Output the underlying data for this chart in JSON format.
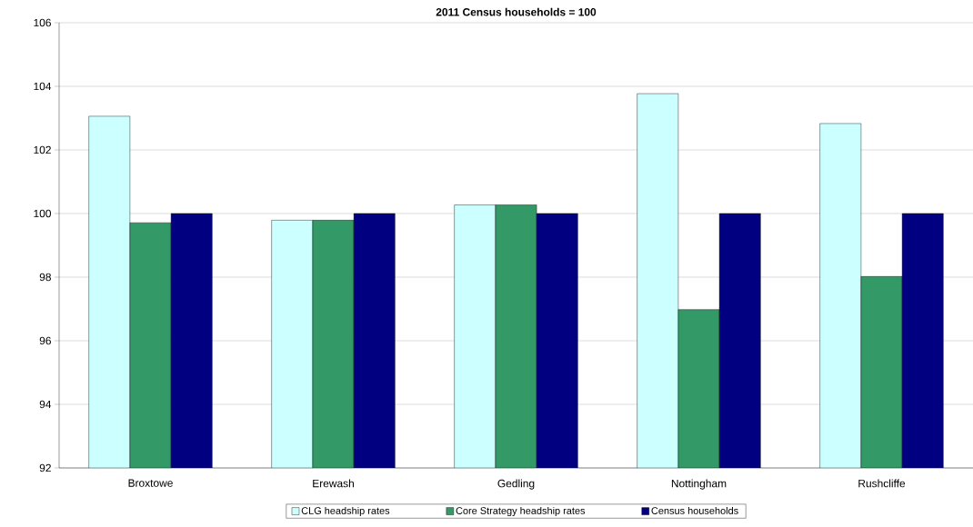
{
  "chart_data": {
    "type": "bar",
    "title": "2011 Census households = 100",
    "categories": [
      "Broxtowe",
      "Erewash",
      "Gedling",
      "Nottingham",
      "Rushcliffe"
    ],
    "series": [
      {
        "name": "CLG headship rates",
        "color": "#ccffff",
        "values": [
          103.06,
          99.79,
          100.27,
          103.77,
          102.83
        ]
      },
      {
        "name": "Core Strategy headship rates",
        "color": "#339966",
        "values": [
          99.71,
          99.79,
          100.27,
          96.98,
          98.02
        ]
      },
      {
        "name": "Census households",
        "color": "#000080",
        "values": [
          100,
          100,
          100,
          100,
          100
        ]
      }
    ],
    "ylim": [
      92,
      106
    ],
    "yticks": [
      92,
      94,
      96,
      98,
      100,
      102,
      104,
      106
    ],
    "grid": "y",
    "legend": "bottom"
  }
}
